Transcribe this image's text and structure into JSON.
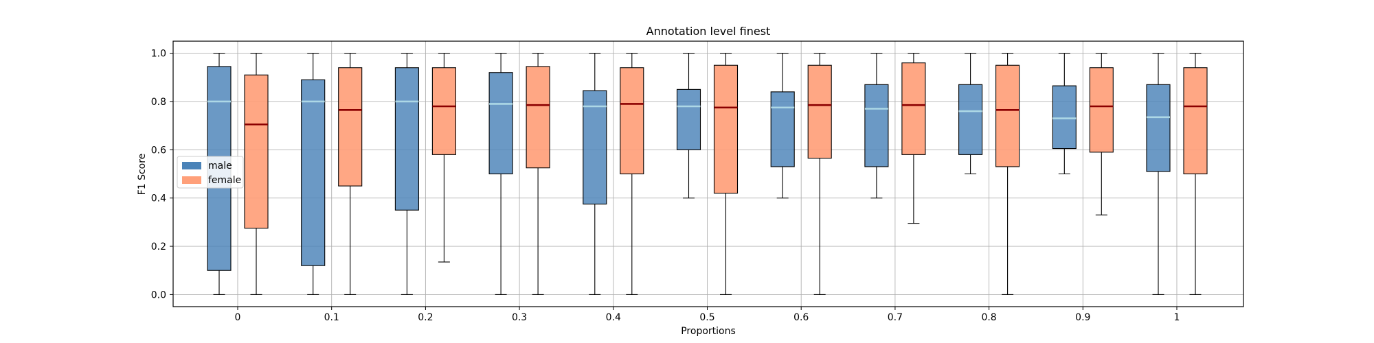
{
  "chart_data": {
    "type": "box",
    "title": "Annotation level finest",
    "xlabel": "Proportions",
    "ylabel": "F1 Score",
    "ylim": [
      -0.05,
      1.05
    ],
    "yticks": [
      "0.0",
      "0.2",
      "0.4",
      "0.6",
      "0.8",
      "1.0"
    ],
    "categories": [
      "0",
      "0.1",
      "0.2",
      "0.3",
      "0.4",
      "0.5",
      "0.6",
      "0.7",
      "0.8",
      "0.9",
      "1"
    ],
    "grid": true,
    "legend_position": "center-left",
    "series": [
      {
        "name": "male",
        "color": "#4a83b8",
        "median_color": "#add8e6",
        "boxes": [
          {
            "whisker_low": 0.0,
            "q1": 0.1,
            "median": 0.8,
            "q3": 0.945,
            "whisker_high": 1.0
          },
          {
            "whisker_low": 0.0,
            "q1": 0.12,
            "median": 0.8,
            "q3": 0.89,
            "whisker_high": 1.0
          },
          {
            "whisker_low": 0.0,
            "q1": 0.35,
            "median": 0.8,
            "q3": 0.94,
            "whisker_high": 1.0
          },
          {
            "whisker_low": 0.0,
            "q1": 0.5,
            "median": 0.79,
            "q3": 0.92,
            "whisker_high": 1.0
          },
          {
            "whisker_low": 0.0,
            "q1": 0.375,
            "median": 0.78,
            "q3": 0.845,
            "whisker_high": 1.0
          },
          {
            "whisker_low": 0.4,
            "q1": 0.6,
            "median": 0.78,
            "q3": 0.85,
            "whisker_high": 1.0
          },
          {
            "whisker_low": 0.4,
            "q1": 0.53,
            "median": 0.775,
            "q3": 0.84,
            "whisker_high": 1.0
          },
          {
            "whisker_low": 0.4,
            "q1": 0.53,
            "median": 0.77,
            "q3": 0.87,
            "whisker_high": 1.0
          },
          {
            "whisker_low": 0.5,
            "q1": 0.58,
            "median": 0.76,
            "q3": 0.87,
            "whisker_high": 1.0
          },
          {
            "whisker_low": 0.5,
            "q1": 0.605,
            "median": 0.73,
            "q3": 0.865,
            "whisker_high": 1.0
          },
          {
            "whisker_low": 0.0,
            "q1": 0.51,
            "median": 0.735,
            "q3": 0.87,
            "whisker_high": 1.0
          }
        ]
      },
      {
        "name": "female",
        "color": "#ffa07a",
        "median_color": "#8b0000",
        "boxes": [
          {
            "whisker_low": 0.0,
            "q1": 0.275,
            "median": 0.705,
            "q3": 0.91,
            "whisker_high": 1.0
          },
          {
            "whisker_low": 0.0,
            "q1": 0.45,
            "median": 0.765,
            "q3": 0.94,
            "whisker_high": 1.0
          },
          {
            "whisker_low": 0.135,
            "q1": 0.58,
            "median": 0.78,
            "q3": 0.94,
            "whisker_high": 1.0
          },
          {
            "whisker_low": 0.0,
            "q1": 0.525,
            "median": 0.785,
            "q3": 0.945,
            "whisker_high": 1.0
          },
          {
            "whisker_low": 0.0,
            "q1": 0.5,
            "median": 0.79,
            "q3": 0.94,
            "whisker_high": 1.0
          },
          {
            "whisker_low": 0.0,
            "q1": 0.42,
            "median": 0.775,
            "q3": 0.95,
            "whisker_high": 1.0
          },
          {
            "whisker_low": 0.0,
            "q1": 0.565,
            "median": 0.785,
            "q3": 0.95,
            "whisker_high": 1.0
          },
          {
            "whisker_low": 0.295,
            "q1": 0.58,
            "median": 0.785,
            "q3": 0.96,
            "whisker_high": 1.0
          },
          {
            "whisker_low": 0.0,
            "q1": 0.53,
            "median": 0.765,
            "q3": 0.95,
            "whisker_high": 1.0
          },
          {
            "whisker_low": 0.33,
            "q1": 0.59,
            "median": 0.78,
            "q3": 0.94,
            "whisker_high": 1.0
          },
          {
            "whisker_low": 0.0,
            "q1": 0.5,
            "median": 0.78,
            "q3": 0.94,
            "whisker_high": 1.0
          }
        ]
      }
    ]
  }
}
